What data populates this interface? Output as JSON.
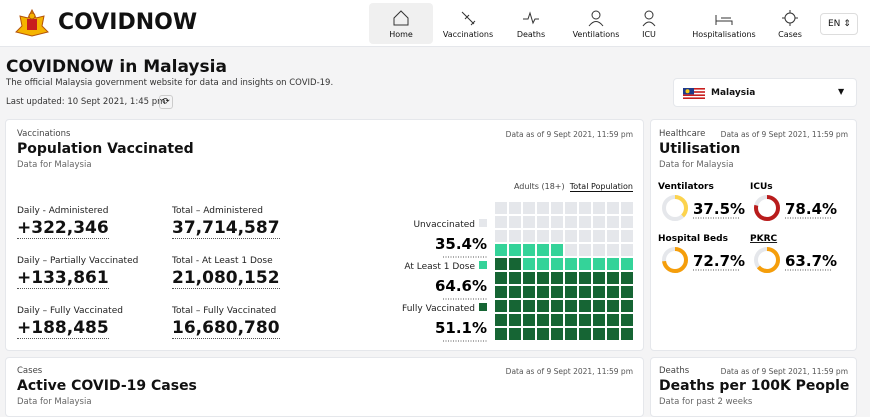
{
  "header": {
    "brand": "COVIDNOW",
    "nav": [
      "Home",
      "Vaccinations",
      "Deaths",
      "Ventilations",
      "ICU",
      "Hospitalisations",
      "Cases"
    ],
    "language": "EN"
  },
  "page": {
    "title": "COVIDNOW in Malaysia",
    "subtitle": "The official Malaysia government website for data and insights on COVID-19.",
    "last_updated": "Last updated: 10 Sept 2021, 1:45 pm",
    "country": "Malaysia"
  },
  "vaccination": {
    "category": "Vaccinations",
    "title": "Population Vaccinated",
    "subtitle": "Data for Malaysia",
    "as_of": "Data as of 9 Sept 2021, 11:59 pm",
    "tabs": [
      "Adults (18+)",
      "Total Population"
    ],
    "stats": [
      {
        "label": "Daily - Administered",
        "value": "+322,346"
      },
      {
        "label": "Total – Administered",
        "value": "37,714,587"
      },
      {
        "label": "Daily – Partially Vaccinated",
        "value": "+133,861"
      },
      {
        "label": "Total - At Least 1 Dose",
        "value": "21,080,152"
      },
      {
        "label": "Daily – Fully Vaccinated",
        "value": "+188,485"
      },
      {
        "label": "Total – Fully Vaccinated",
        "value": "16,680,780"
      }
    ],
    "waffle": [
      {
        "name": "Unvaccinated",
        "color": "#e5e7eb",
        "value": 35.4,
        "label": "35.4%"
      },
      {
        "name": "At Least 1 Dose",
        "color": "#34d399",
        "value": 64.6,
        "label": "64.6%"
      },
      {
        "name": "Fully Vaccinated",
        "color": "#166534",
        "value": 51.1,
        "label": "51.1%"
      }
    ]
  },
  "utilisation": {
    "category": "Healthcare",
    "as_of": "Data as of 9 Sept 2021, 11:59 pm",
    "title": "Utilisation",
    "subtitle": "Data for Malaysia",
    "items": [
      {
        "name": "Ventilators",
        "color": "#fcd34d",
        "value": 37.5,
        "label": "37.5%"
      },
      {
        "name": "ICUs",
        "color": "#b91c1c",
        "value": 78.4,
        "label": "78.4%"
      },
      {
        "name": "Hospital Beds",
        "color": "#f59e0b",
        "value": 72.7,
        "label": "72.7%"
      },
      {
        "name": "PKRC",
        "color": "#f59e0b",
        "value": 63.7,
        "label": "63.7%"
      }
    ]
  },
  "cases": {
    "category": "Cases",
    "title": "Active COVID-19 Cases",
    "subtitle": "Data for Malaysia",
    "as_of": "Data as of 9 Sept 2021, 11:59 pm"
  },
  "deaths": {
    "category": "Deaths",
    "title": "Deaths per 100K People",
    "subtitle": "Data for past 2 weeks",
    "as_of": "Data as of 9 Sept 2021, 11:59 pm"
  }
}
